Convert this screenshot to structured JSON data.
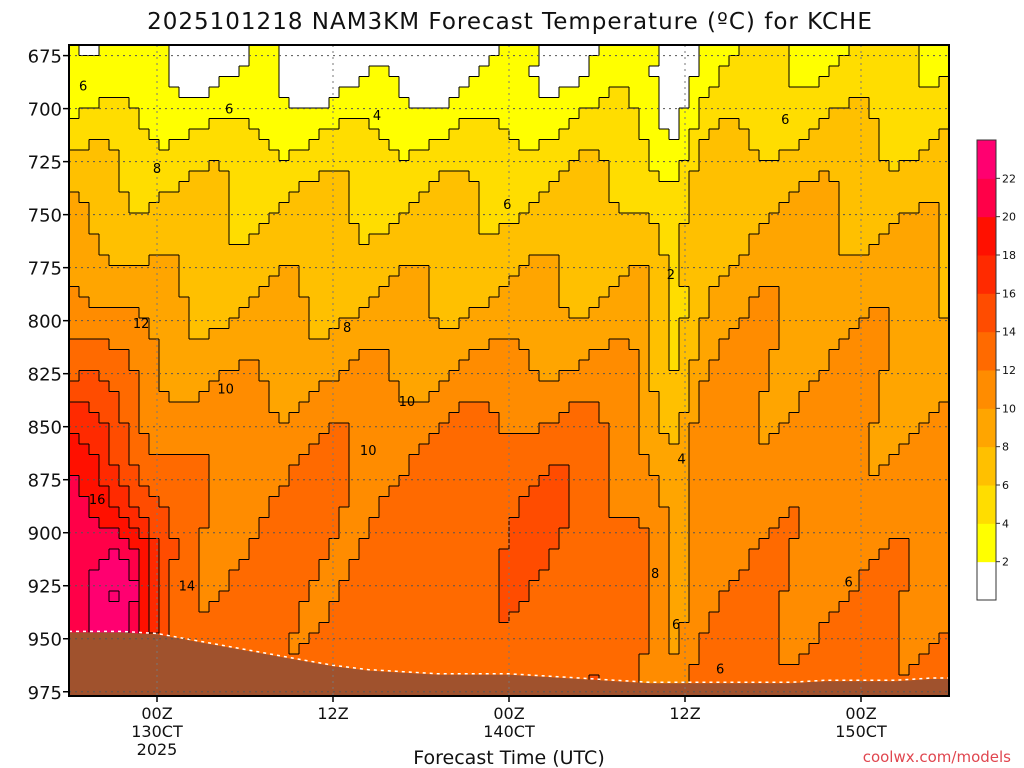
{
  "chart_data": {
    "type": "heatmap",
    "title": "2025101218 NAM3KM Forecast Temperature (ºC) for KCHE",
    "xlabel": "Forecast Time (UTC)",
    "ylabel": "",
    "credit": "coolwx.com/models",
    "y_axis": {
      "inverted": true,
      "ylim": [
        670,
        977
      ],
      "ticks": [
        675,
        700,
        725,
        750,
        775,
        800,
        825,
        850,
        875,
        900,
        925,
        950,
        975
      ]
    },
    "x_axis": {
      "xlim": [
        -5,
        45
      ],
      "units": "forecast hours from 00Z 13 Oct 2025",
      "ticks": [
        {
          "x": 0,
          "l1": "00Z",
          "l2": "130CT",
          "l3": "2025"
        },
        {
          "x": 10,
          "l1": "12Z",
          "l2": "",
          "l3": ""
        },
        {
          "x": 20,
          "l1": "00Z",
          "l2": "140CT",
          "l3": ""
        },
        {
          "x": 30,
          "l1": "12Z",
          "l2": "",
          "l3": ""
        },
        {
          "x": 40,
          "l1": "00Z",
          "l2": "150CT",
          "l3": ""
        }
      ]
    },
    "colorbar": {
      "labels": [
        2,
        4,
        6,
        8,
        10,
        12,
        14,
        16,
        18,
        20,
        22
      ],
      "bins": [
        {
          "min": 0,
          "max": 2,
          "color": "#ffffff"
        },
        {
          "min": 2,
          "max": 4,
          "color": "#ffff00"
        },
        {
          "min": 4,
          "max": 6,
          "color": "#ffdd00"
        },
        {
          "min": 6,
          "max": 8,
          "color": "#ffc000"
        },
        {
          "min": 8,
          "max": 10,
          "color": "#ffa500"
        },
        {
          "min": 10,
          "max": 12,
          "color": "#ff8c00"
        },
        {
          "min": 12,
          "max": 14,
          "color": "#ff6a00"
        },
        {
          "min": 14,
          "max": 16,
          "color": "#ff4c00"
        },
        {
          "min": 16,
          "max": 18,
          "color": "#ff2a00"
        },
        {
          "min": 18,
          "max": 20,
          "color": "#ff1000"
        },
        {
          "min": 20,
          "max": 22,
          "color": "#ff0048"
        },
        {
          "min": 22,
          "max": 24,
          "color": "#ff0070"
        }
      ]
    },
    "ground_color": "#a0522d",
    "ground_surface_hpa": [
      [
        -5,
        947
      ],
      [
        -2,
        947
      ],
      [
        0,
        948
      ],
      [
        2,
        951
      ],
      [
        4,
        954
      ],
      [
        6,
        957
      ],
      [
        8,
        960
      ],
      [
        10,
        963
      ],
      [
        12,
        965
      ],
      [
        14,
        966
      ],
      [
        16,
        967
      ],
      [
        18,
        967
      ],
      [
        20,
        967
      ],
      [
        22,
        968
      ],
      [
        24,
        969
      ],
      [
        26,
        970
      ],
      [
        28,
        971
      ],
      [
        30,
        971
      ],
      [
        32,
        971
      ],
      [
        34,
        971
      ],
      [
        36,
        971
      ],
      [
        38,
        970
      ],
      [
        40,
        970
      ],
      [
        42,
        970
      ],
      [
        44,
        969
      ],
      [
        45,
        969
      ]
    ],
    "contour_labels": [
      {
        "x": -4.2,
        "p": 689,
        "v": "6"
      },
      {
        "x": 4.1,
        "p": 700,
        "v": "6"
      },
      {
        "x": 12.5,
        "p": 703,
        "v": "4"
      },
      {
        "x": 35.7,
        "p": 705,
        "v": "6"
      },
      {
        "x": 0.0,
        "p": 728,
        "v": "8"
      },
      {
        "x": 19.9,
        "p": 745,
        "v": "6"
      },
      {
        "x": 29.2,
        "p": 778,
        "v": "2"
      },
      {
        "x": -0.9,
        "p": 801,
        "v": "12"
      },
      {
        "x": 10.8,
        "p": 803,
        "v": "8"
      },
      {
        "x": 3.9,
        "p": 832,
        "v": "10"
      },
      {
        "x": 14.2,
        "p": 838,
        "v": "10"
      },
      {
        "x": 12.0,
        "p": 861,
        "v": "10"
      },
      {
        "x": 29.8,
        "p": 865,
        "v": "4"
      },
      {
        "x": -3.4,
        "p": 884,
        "v": "16"
      },
      {
        "x": 28.3,
        "p": 919,
        "v": "8"
      },
      {
        "x": 39.3,
        "p": 923,
        "v": "6"
      },
      {
        "x": 1.7,
        "p": 925,
        "v": "14"
      },
      {
        "x": 29.5,
        "p": 943,
        "v": "6"
      },
      {
        "x": 32.0,
        "p": 964,
        "v": "6"
      }
    ],
    "temperature_field_note": "Temperature decreases with height; warm core (16-22C) near 900-940 hPa at 00Z 13 Oct; cold notch (0-4C) near 12Z 14 Oct aloft."
  }
}
